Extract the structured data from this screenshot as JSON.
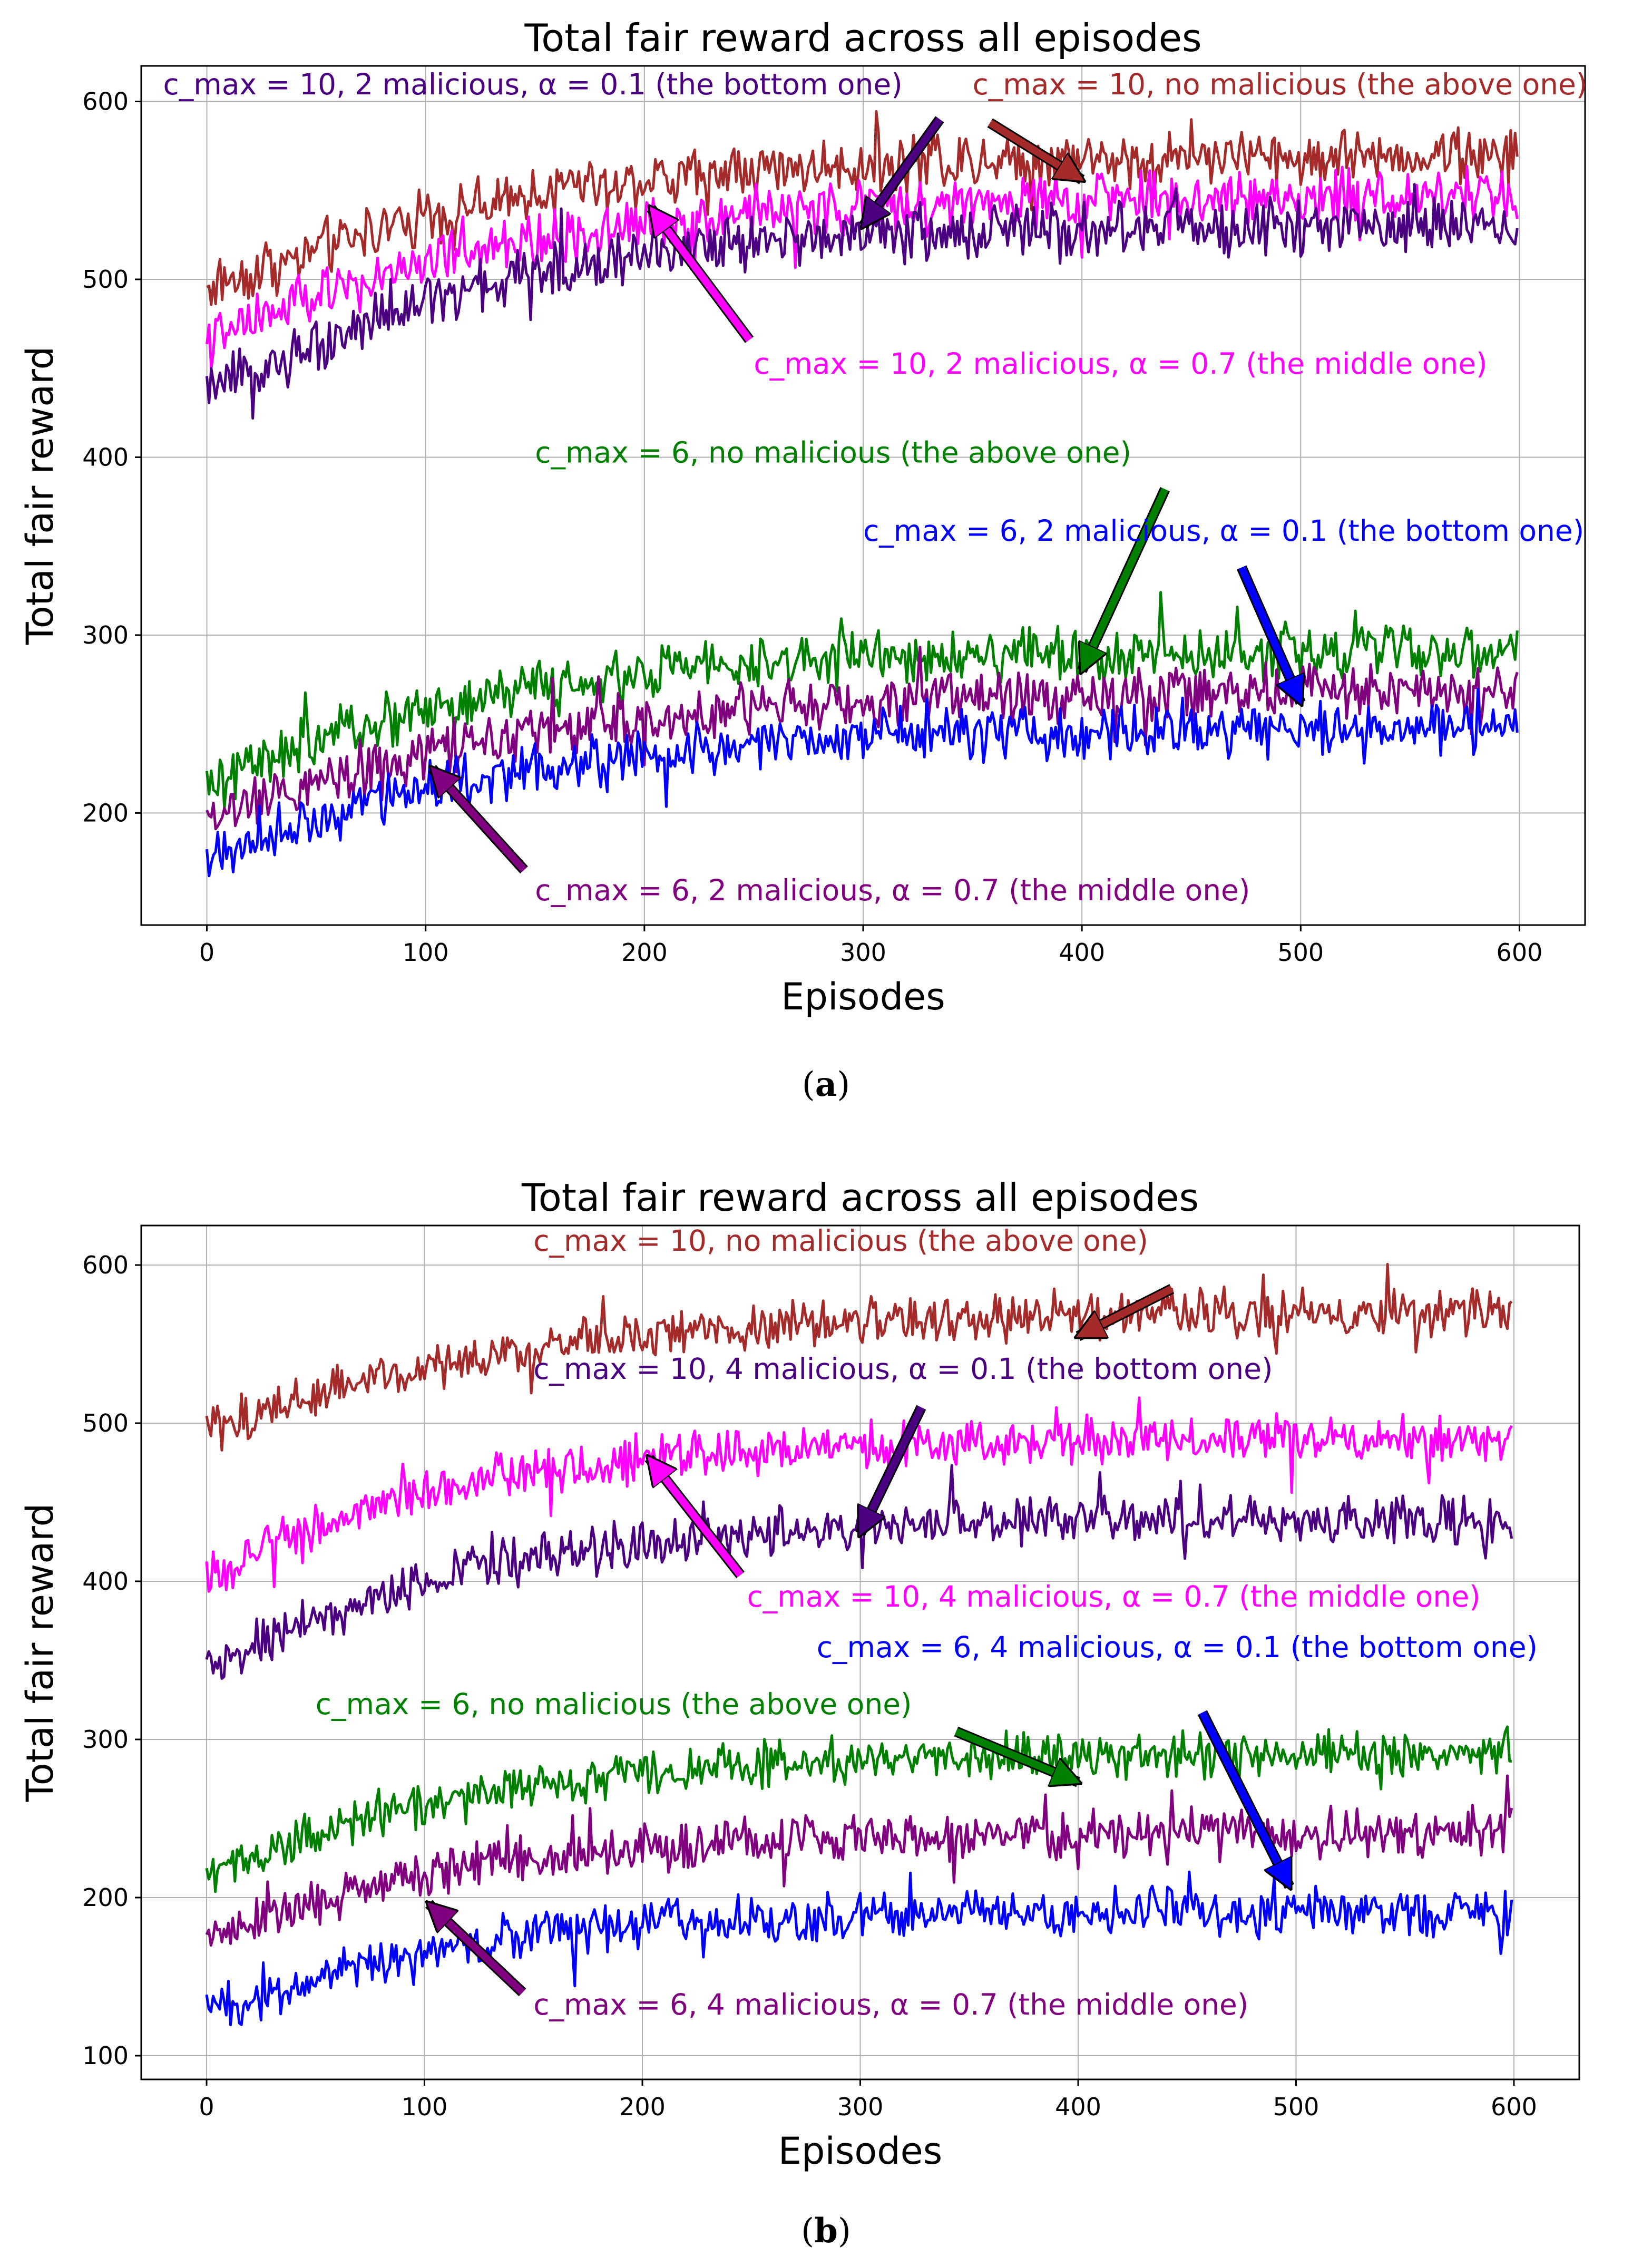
{
  "colors": {
    "brown": "#a52a2a",
    "magenta": "#ff00ff",
    "indigo": "#4b0082",
    "green": "#008000",
    "purple": "#800080",
    "blue": "#0000ff",
    "grid": "#b0b0b0"
  },
  "chart_data": [
    {
      "type": "line",
      "caption": "a",
      "title": "Total fair reward across all episodes",
      "xlabel": "Episodes",
      "ylabel": "Total fair reward",
      "xlim": [
        -30,
        630
      ],
      "ylim": [
        137,
        620
      ],
      "xticks": [
        0,
        100,
        200,
        300,
        400,
        500,
        600
      ],
      "yticks": [
        200,
        300,
        400,
        500,
        600
      ],
      "grid": true,
      "series": [
        {
          "name": "c_max = 10, no malicious",
          "color": "brown",
          "x": [
            0,
            25,
            50,
            75,
            100,
            125,
            150,
            175,
            200,
            225,
            250,
            275,
            300,
            325,
            350,
            375,
            400,
            425,
            450,
            475,
            500,
            525,
            550,
            575,
            600
          ],
          "values": [
            495,
            507,
            517,
            527,
            535,
            542,
            548,
            552,
            556,
            559,
            561,
            563,
            565,
            566,
            567,
            567,
            568,
            568,
            569,
            569,
            569,
            570,
            570,
            570,
            570
          ]
        },
        {
          "name": "c_max = 10, 2 malicious, α = 0.7",
          "color": "magenta",
          "x": [
            0,
            25,
            50,
            75,
            100,
            125,
            150,
            175,
            200,
            225,
            250,
            275,
            300,
            325,
            350,
            375,
            400,
            425,
            450,
            475,
            500,
            525,
            550,
            575,
            600
          ],
          "values": [
            465,
            478,
            490,
            500,
            509,
            516,
            522,
            527,
            531,
            534,
            537,
            539,
            541,
            542,
            543,
            544,
            545,
            546,
            546,
            547,
            547,
            547,
            548,
            548,
            548
          ]
        },
        {
          "name": "c_max = 10, 2 malicious, α = 0.1",
          "color": "indigo",
          "x": [
            0,
            25,
            50,
            75,
            100,
            125,
            150,
            175,
            200,
            225,
            250,
            275,
            300,
            325,
            350,
            375,
            400,
            425,
            450,
            475,
            500,
            525,
            550,
            575,
            600
          ],
          "values": [
            435,
            450,
            464,
            476,
            487,
            496,
            503,
            509,
            514,
            518,
            521,
            523,
            525,
            526,
            527,
            528,
            528,
            529,
            529,
            529,
            530,
            530,
            530,
            530,
            530
          ]
        },
        {
          "name": "c_max = 6, no malicious",
          "color": "green",
          "x": [
            0,
            25,
            50,
            75,
            100,
            125,
            150,
            175,
            200,
            225,
            250,
            275,
            300,
            325,
            350,
            375,
            400,
            425,
            450,
            475,
            500,
            525,
            550,
            575,
            600
          ],
          "values": [
            215,
            228,
            240,
            250,
            258,
            265,
            270,
            274,
            278,
            281,
            283,
            285,
            286,
            287,
            288,
            289,
            289,
            290,
            290,
            290,
            290,
            291,
            291,
            291,
            291
          ]
        },
        {
          "name": "c_max = 6, 2 malicious, α = 0.7",
          "color": "purple",
          "x": [
            0,
            25,
            50,
            75,
            100,
            125,
            150,
            175,
            200,
            225,
            250,
            275,
            300,
            325,
            350,
            375,
            400,
            425,
            450,
            475,
            500,
            525,
            550,
            575,
            600
          ],
          "values": [
            195,
            207,
            218,
            227,
            235,
            241,
            246,
            250,
            254,
            257,
            259,
            261,
            263,
            264,
            265,
            266,
            266,
            267,
            267,
            267,
            268,
            268,
            268,
            268,
            268
          ]
        },
        {
          "name": "c_max = 6, 2 malicious, α = 0.1",
          "color": "blue",
          "x": [
            0,
            25,
            50,
            75,
            100,
            125,
            150,
            175,
            200,
            225,
            250,
            275,
            300,
            325,
            350,
            375,
            400,
            425,
            450,
            475,
            500,
            525,
            550,
            575,
            600
          ],
          "values": [
            175,
            187,
            198,
            207,
            214,
            220,
            225,
            229,
            233,
            236,
            238,
            240,
            242,
            243,
            244,
            245,
            245,
            246,
            246,
            246,
            247,
            247,
            247,
            247,
            247
          ]
        }
      ],
      "annotations": [
        {
          "text": "c_max = 10, 2 malicious, α = 0.1 (the bottom one)",
          "color": "indigo",
          "tx": -20,
          "ty": 604,
          "anchor": "start",
          "ax": 300,
          "ay": 530,
          "bx": 335,
          "by": 590
        },
        {
          "text": "c_max = 10, no malicious (the above one)",
          "color": "brown",
          "tx": 350,
          "ty": 604,
          "anchor": "start",
          "ax": 400,
          "ay": 556,
          "bx": 358,
          "by": 588
        },
        {
          "text": "c_max = 10, 2 malicious, α = 0.7 (the middle one)",
          "color": "magenta",
          "tx": 250,
          "ty": 447,
          "anchor": "start",
          "ax": 203,
          "ay": 540,
          "bx": 248,
          "by": 466
        },
        {
          "text": "c_max = 6, no malicious (the above one)",
          "color": "green",
          "tx": 150,
          "ty": 397,
          "anchor": "start",
          "ax": 400,
          "ay": 280,
          "bx": 438,
          "by": 382
        },
        {
          "text": "c_max = 6, 2 malicious, α = 0.1 (the bottom one)",
          "color": "blue",
          "tx": 300,
          "ty": 353,
          "anchor": "start",
          "ax": 500,
          "ay": 262,
          "bx": 473,
          "by": 338
        },
        {
          "text": "c_max = 6, 2 malicious, α = 0.7 (the middle one)",
          "color": "purple",
          "tx": 150,
          "ty": 151,
          "anchor": "start",
          "ax": 103,
          "ay": 225,
          "bx": 145,
          "by": 168
        }
      ]
    },
    {
      "type": "line",
      "caption": "b",
      "title": "Total fair reward across all episodes",
      "xlabel": "Episodes",
      "ylabel": "Total fair reward",
      "xlim": [
        -30,
        630
      ],
      "ylim": [
        85,
        625
      ],
      "xticks": [
        0,
        100,
        200,
        300,
        400,
        500,
        600
      ],
      "yticks": [
        100,
        200,
        300,
        400,
        500,
        600
      ],
      "grid": true,
      "series": [
        {
          "name": "c_max = 10, no malicious",
          "color": "brown",
          "x": [
            0,
            25,
            50,
            75,
            100,
            125,
            150,
            175,
            200,
            225,
            250,
            275,
            300,
            325,
            350,
            375,
            400,
            425,
            450,
            475,
            500,
            525,
            550,
            575,
            600
          ],
          "values": [
            495,
            507,
            517,
            527,
            535,
            542,
            548,
            552,
            556,
            559,
            561,
            563,
            565,
            566,
            567,
            567,
            568,
            568,
            569,
            569,
            569,
            570,
            570,
            570,
            570
          ]
        },
        {
          "name": "c_max = 10, 4 malicious, α = 0.7",
          "color": "magenta",
          "x": [
            0,
            25,
            50,
            75,
            100,
            125,
            150,
            175,
            200,
            225,
            250,
            275,
            300,
            325,
            350,
            375,
            400,
            425,
            450,
            475,
            500,
            525,
            550,
            575,
            600
          ],
          "values": [
            405,
            420,
            434,
            446,
            456,
            464,
            470,
            475,
            478,
            481,
            483,
            485,
            486,
            487,
            488,
            488,
            489,
            489,
            489,
            490,
            490,
            490,
            490,
            490,
            490
          ]
        },
        {
          "name": "c_max = 10, 4 malicious, α = 0.1",
          "color": "indigo",
          "x": [
            0,
            25,
            50,
            75,
            100,
            125,
            150,
            175,
            200,
            225,
            250,
            275,
            300,
            325,
            350,
            375,
            400,
            425,
            450,
            475,
            500,
            525,
            550,
            575,
            600
          ],
          "values": [
            345,
            361,
            375,
            388,
            398,
            407,
            414,
            419,
            424,
            427,
            430,
            432,
            434,
            435,
            436,
            437,
            438,
            438,
            439,
            439,
            439,
            440,
            440,
            440,
            440
          ]
        },
        {
          "name": "c_max = 6, no malicious",
          "color": "green",
          "x": [
            0,
            25,
            50,
            75,
            100,
            125,
            150,
            175,
            200,
            225,
            250,
            275,
            300,
            325,
            350,
            375,
            400,
            425,
            450,
            475,
            500,
            525,
            550,
            575,
            600
          ],
          "values": [
            215,
            228,
            240,
            250,
            258,
            265,
            270,
            274,
            278,
            281,
            283,
            285,
            286,
            287,
            288,
            289,
            289,
            290,
            290,
            290,
            290,
            291,
            291,
            291,
            291
          ]
        },
        {
          "name": "c_max = 6, 4 malicious, α = 0.7",
          "color": "purple",
          "x": [
            0,
            25,
            50,
            75,
            100,
            125,
            150,
            175,
            200,
            225,
            250,
            275,
            300,
            325,
            350,
            375,
            400,
            425,
            450,
            475,
            500,
            525,
            550,
            575,
            600
          ],
          "values": [
            175,
            187,
            198,
            207,
            214,
            220,
            225,
            229,
            232,
            234,
            236,
            237,
            238,
            239,
            239,
            240,
            240,
            240,
            240,
            241,
            241,
            241,
            241,
            241,
            241
          ]
        },
        {
          "name": "c_max = 6, 4 malicious, α = 0.1",
          "color": "blue",
          "x": [
            0,
            25,
            50,
            75,
            100,
            125,
            150,
            175,
            200,
            225,
            250,
            275,
            300,
            325,
            350,
            375,
            400,
            425,
            450,
            475,
            500,
            525,
            550,
            575,
            600
          ],
          "values": [
            125,
            137,
            148,
            158,
            166,
            172,
            177,
            181,
            184,
            186,
            187,
            188,
            189,
            190,
            190,
            190,
            191,
            191,
            191,
            191,
            191,
            191,
            191,
            191,
            191
          ]
        }
      ],
      "annotations": [
        {
          "text": "c_max = 10, no malicious (the above one)",
          "color": "brown",
          "tx": 150,
          "ty": 609,
          "anchor": "start",
          "ax": 400,
          "ay": 555,
          "bx": 443,
          "by": 585
        },
        {
          "text": "c_max = 10, 4 malicious, α = 0.1 (the bottom one)",
          "color": "indigo",
          "tx": 150,
          "ty": 528,
          "anchor": "start",
          "ax": 300,
          "ay": 430,
          "bx": 328,
          "by": 510
        },
        {
          "text": "c_max = 10, 4 malicious, α = 0.7 (the middle one)",
          "color": "magenta",
          "tx": 248,
          "ty": 384,
          "anchor": "start",
          "ax": 203,
          "ay": 478,
          "bx": 245,
          "by": 404
        },
        {
          "text": "c_max = 6, 4 malicious, α = 0.1 (the bottom one)",
          "color": "blue",
          "tx": 280,
          "ty": 352,
          "anchor": "start",
          "ax": 497,
          "ay": 207,
          "bx": 457,
          "by": 317
        },
        {
          "text": "c_max = 6, no malicious (the above one)",
          "color": "green",
          "tx": 50,
          "ty": 316,
          "anchor": "start",
          "ax": 400,
          "ay": 273,
          "bx": 344,
          "by": 305
        },
        {
          "text": "c_max = 6, 4 malicious, α = 0.7 (the middle one)",
          "color": "purple",
          "tx": 150,
          "ty": 126,
          "anchor": "start",
          "ax": 102,
          "ay": 196,
          "bx": 145,
          "by": 140
        }
      ]
    }
  ]
}
